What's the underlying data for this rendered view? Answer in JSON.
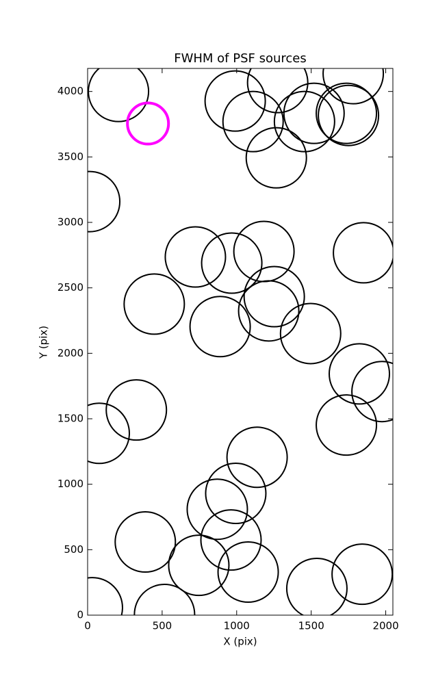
{
  "chart_data": {
    "type": "scatter",
    "title": "FWHM of PSF sources",
    "x_label": "X (pix)",
    "y_label": "Y (pix)",
    "xlim": [
      0,
      2048
    ],
    "ylim": [
      0,
      4176
    ],
    "xticks": [
      0,
      500,
      1000,
      1500,
      2000
    ],
    "yticks": [
      0,
      500,
      1000,
      1500,
      2000,
      2500,
      3000,
      3500,
      4000
    ],
    "series": [
      {
        "color": "#000000",
        "x": [
          207,
          990,
          1275,
          1110,
          1519,
          1455,
          1266,
          1782,
          1736,
          1750,
          14,
          723,
          967,
          1183,
          1851,
          447,
          1252,
          1215,
          889,
          1496,
          1823,
          1975,
          327,
          78,
          1736,
          1137,
          994,
          870,
          387,
          962,
          746,
          1077,
          1842,
          1538,
          32,
          516
        ],
        "values": [
          4000,
          3927,
          4068,
          3770,
          3833,
          3770,
          3493,
          4136,
          3833,
          3817,
          3159,
          2736,
          2689,
          2778,
          2768,
          2376,
          2433,
          2324,
          2204,
          2151,
          1843,
          1708,
          1567,
          1389,
          1452,
          1206,
          930,
          809,
          559,
          574,
          381,
          329,
          313,
          204,
          57,
          5
        ]
      },
      {
        "color": "#ff00ff",
        "x": [
          405
        ],
        "values": [
          3755
        ]
      }
    ]
  }
}
